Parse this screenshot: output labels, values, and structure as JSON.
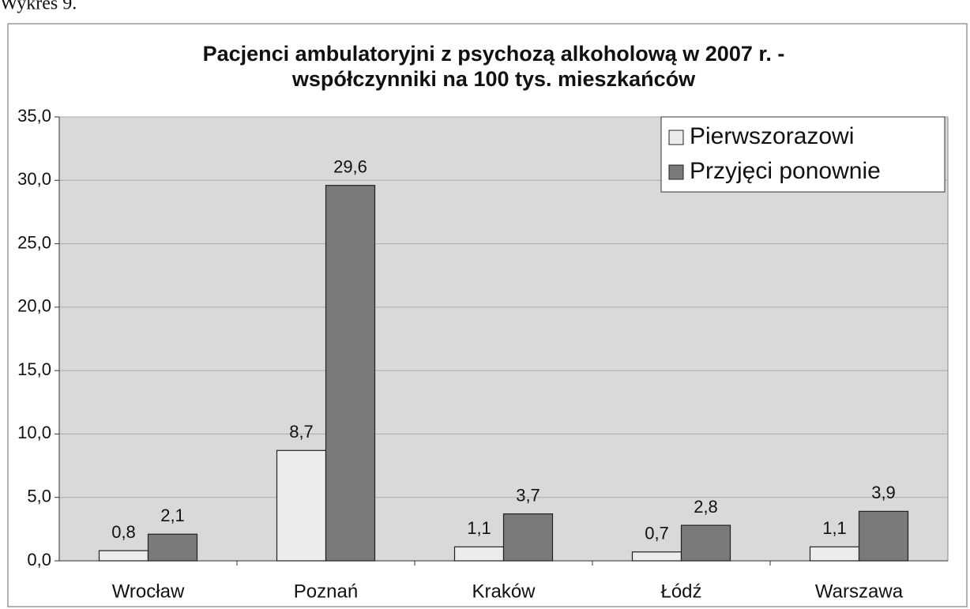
{
  "caption": "Wykres 9.",
  "chart_data": {
    "type": "bar",
    "title": [
      "Pacjenci ambulatoryjni z psychozą alkoholową w 2007 r.  -",
      "współczynniki na 100 tys. mieszkańców"
    ],
    "categories": [
      "Wrocław",
      "Poznań",
      "Kraków",
      "Łódź",
      "Warszawa"
    ],
    "series": [
      {
        "name": "Pierwszorazowi",
        "color": "#ececec",
        "values": [
          0.8,
          8.7,
          1.1,
          0.7,
          1.1
        ],
        "value_labels": [
          "0,8",
          "8,7",
          "1,1",
          "0,7",
          "1,1"
        ]
      },
      {
        "name": "Przyjęci ponownie",
        "color": "#7a7a7a",
        "values": [
          2.1,
          29.6,
          3.7,
          2.8,
          3.9
        ],
        "value_labels": [
          "2,1",
          "29,6",
          "3,7",
          "2,8",
          "3,9"
        ]
      }
    ],
    "ylim": [
      0,
      35
    ],
    "yticks": [
      {
        "value": 0,
        "label": "0,0"
      },
      {
        "value": 5,
        "label": "5,0"
      },
      {
        "value": 10,
        "label": "10,0"
      },
      {
        "value": 15,
        "label": "15,0"
      },
      {
        "value": 20,
        "label": "20,0"
      },
      {
        "value": 25,
        "label": "25,0"
      },
      {
        "value": 30,
        "label": "30,0"
      },
      {
        "value": 35,
        "label": "35,0"
      }
    ],
    "grid": true,
    "legend": "top-right"
  }
}
